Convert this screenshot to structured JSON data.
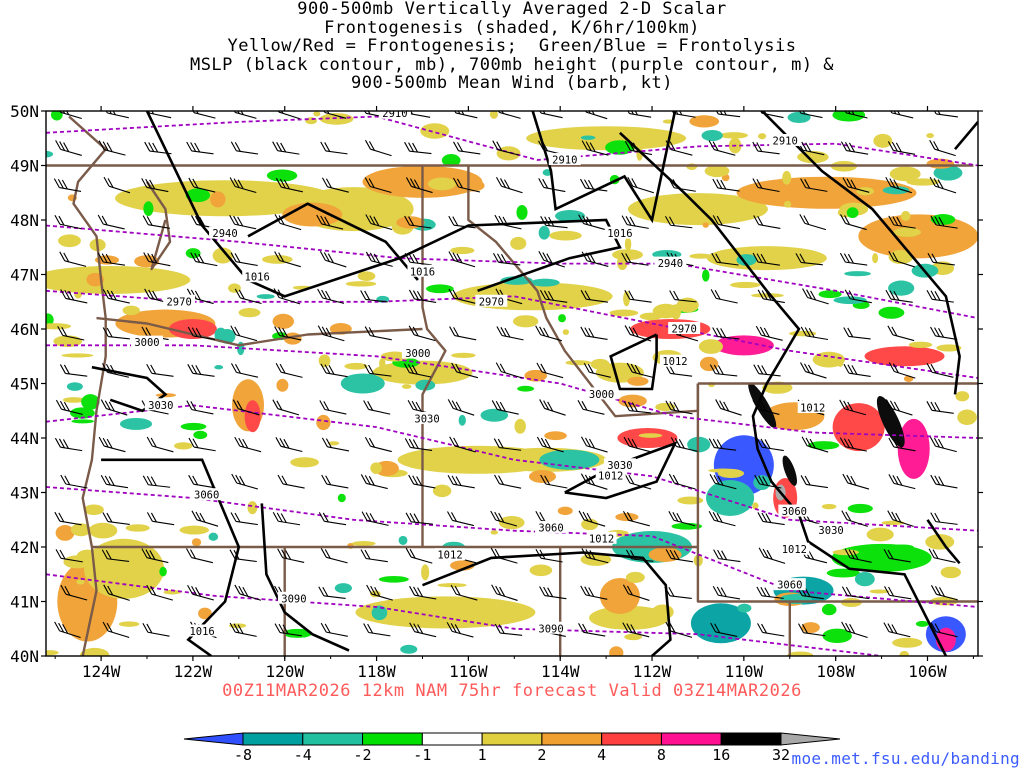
{
  "title": {
    "line1": "900-500mb Vertically Averaged 2-D Scalar",
    "line2": "Frontogenesis (shaded, K/6hr/100km)",
    "line3": "Yellow/Red = Frontogenesis;  Green/Blue = Frontolysis",
    "line4": "MSLP (black contour, mb), 700mb height (purple contour, m) &",
    "line5": "900-500mb Mean Wind (barb, kt)"
  },
  "footer": {
    "forecast": "00Z11MAR2026 12km NAM 75hr forecast Valid 03Z14MAR2026",
    "credit": "moe.met.fsu.edu/banding"
  },
  "map": {
    "lat_labels": [
      "50N",
      "49N",
      "48N",
      "47N",
      "46N",
      "45N",
      "44N",
      "43N",
      "42N",
      "41N",
      "40N"
    ],
    "lon_labels": [
      "124W",
      "122W",
      "120W",
      "118W",
      "116W",
      "114W",
      "112W",
      "110W",
      "108W",
      "106W"
    ],
    "lat_range": [
      40,
      50
    ],
    "lon_range": [
      -125.2,
      -104.9
    ],
    "height_labels": [
      {
        "text": "2910",
        "lon": -117.6,
        "lat": 49.95
      },
      {
        "text": "2910",
        "lon": -113.9,
        "lat": 49.1
      },
      {
        "text": "2910",
        "lon": -109.1,
        "lat": 49.45
      },
      {
        "text": "2940",
        "lon": -121.3,
        "lat": 47.75
      },
      {
        "text": "2940",
        "lon": -111.6,
        "lat": 47.2
      },
      {
        "text": "2970",
        "lon": -122.3,
        "lat": 46.5
      },
      {
        "text": "2970",
        "lon": -115.5,
        "lat": 46.5
      },
      {
        "text": "2970",
        "lon": -111.3,
        "lat": 46.0
      },
      {
        "text": "3000",
        "lon": -123.0,
        "lat": 45.75
      },
      {
        "text": "3000",
        "lon": -117.1,
        "lat": 45.55
      },
      {
        "text": "3000",
        "lon": -113.1,
        "lat": 44.8
      },
      {
        "text": "3030",
        "lon": -122.7,
        "lat": 44.6
      },
      {
        "text": "3030",
        "lon": -116.9,
        "lat": 44.35
      },
      {
        "text": "3030",
        "lon": -112.7,
        "lat": 43.5
      },
      {
        "text": "3030",
        "lon": -108.1,
        "lat": 42.3
      },
      {
        "text": "3060",
        "lon": -121.7,
        "lat": 42.95
      },
      {
        "text": "3060",
        "lon": -114.2,
        "lat": 42.35
      },
      {
        "text": "3060",
        "lon": -108.9,
        "lat": 42.65
      },
      {
        "text": "3060",
        "lon": -109.0,
        "lat": 41.3
      },
      {
        "text": "3090",
        "lon": -119.8,
        "lat": 41.05
      },
      {
        "text": "3090",
        "lon": -114.2,
        "lat": 40.5
      }
    ],
    "pressure_labels": [
      {
        "text": "1016",
        "lon": -120.6,
        "lat": 46.95
      },
      {
        "text": "1016",
        "lon": -117.0,
        "lat": 47.05
      },
      {
        "text": "1016",
        "lon": -112.7,
        "lat": 47.75
      },
      {
        "text": "1016",
        "lon": -121.8,
        "lat": 40.45
      },
      {
        "text": "1012",
        "lon": -111.5,
        "lat": 45.4
      },
      {
        "text": "1012",
        "lon": -108.5,
        "lat": 44.55
      },
      {
        "text": "1012",
        "lon": -112.9,
        "lat": 43.3
      },
      {
        "text": "1012",
        "lon": -113.1,
        "lat": 42.15
      },
      {
        "text": "1012",
        "lon": -116.4,
        "lat": 41.85
      },
      {
        "text": "1012",
        "lon": -108.9,
        "lat": 41.95
      }
    ],
    "colorbar": {
      "labels": [
        "-8",
        "-4",
        "-2",
        "-1",
        "1",
        "2",
        "4",
        "8",
        "16",
        "32"
      ],
      "colors": [
        "#3050ff",
        "#00a0a0",
        "#20c0a0",
        "#00e000",
        "#ffffff",
        "#e0d040",
        "#f0a030",
        "#ff4040",
        "#ff1090",
        "#000000",
        "#a8a8a8"
      ]
    }
  }
}
